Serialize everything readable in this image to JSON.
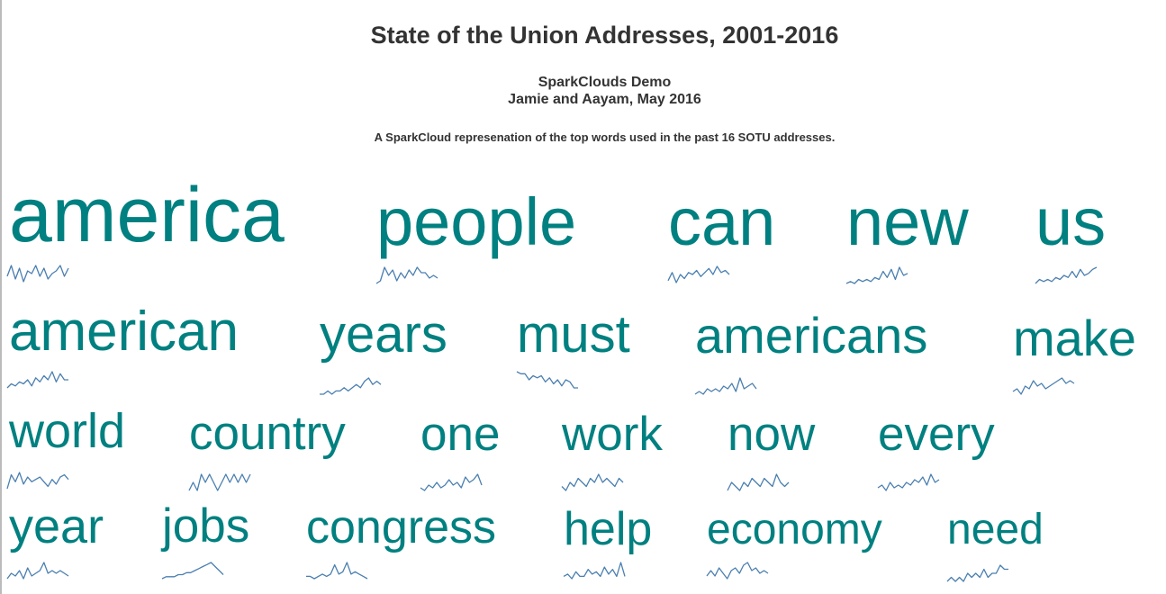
{
  "header": {
    "title": "State of the Union Addresses, 2001-2016",
    "subtitle_line1": "SparkClouds Demo",
    "subtitle_line2": "Jamie and Aayam, May 2016",
    "description": "A SparkCloud represenation of the top words used in the past 16 SOTU addresses."
  },
  "chart_data": {
    "type": "sparkcloud",
    "colors": {
      "word": "#008080",
      "sparkline": "#4a7fb0"
    },
    "words": [
      {
        "text": "america",
        "trend": [
          5,
          9,
          4,
          8,
          3,
          7,
          6,
          9,
          5,
          8,
          4,
          6,
          7,
          9,
          5,
          8
        ]
      },
      {
        "text": "people",
        "trend": [
          2,
          3,
          8,
          5,
          7,
          3,
          6,
          4,
          7,
          5,
          8,
          6,
          6,
          4,
          5,
          4
        ]
      },
      {
        "text": "can",
        "trend": [
          2,
          6,
          1,
          5,
          3,
          6,
          5,
          7,
          4,
          6,
          8,
          5,
          9,
          6,
          7,
          5
        ]
      },
      {
        "text": "new",
        "trend": [
          1,
          2,
          1,
          3,
          2,
          3,
          2,
          4,
          3,
          7,
          4,
          8,
          3,
          9,
          5,
          6
        ]
      },
      {
        "text": "us",
        "trend": [
          1,
          3,
          2,
          3,
          2,
          4,
          3,
          5,
          4,
          7,
          4,
          8,
          5,
          6,
          8,
          9
        ]
      },
      {
        "text": "american",
        "trend": [
          1,
          3,
          2,
          4,
          3,
          5,
          2,
          6,
          4,
          7,
          5,
          9,
          4,
          8,
          5,
          5
        ]
      },
      {
        "text": "years",
        "trend": [
          2,
          2,
          3,
          2,
          3,
          3,
          4,
          3,
          4,
          5,
          4,
          6,
          7,
          5,
          6,
          5
        ]
      },
      {
        "text": "must",
        "trend": [
          9,
          8,
          8,
          5,
          7,
          6,
          7,
          4,
          6,
          3,
          5,
          2,
          5,
          4,
          1,
          1
        ]
      },
      {
        "text": "americans",
        "trend": [
          2,
          3,
          2,
          4,
          3,
          4,
          3,
          5,
          4,
          6,
          3,
          8,
          4,
          5,
          6,
          4
        ]
      },
      {
        "text": "make",
        "trend": [
          2,
          3,
          1,
          4,
          3,
          6,
          4,
          5,
          3,
          4,
          5,
          6,
          7,
          5,
          6,
          5
        ]
      },
      {
        "text": "world",
        "trend": [
          2,
          8,
          5,
          9,
          4,
          7,
          5,
          6,
          7,
          5,
          3,
          6,
          4,
          7,
          8,
          6
        ]
      },
      {
        "text": "country",
        "trend": [
          3,
          4,
          3,
          5,
          4,
          5,
          4,
          3,
          4,
          5,
          4,
          5,
          4,
          5,
          4,
          5
        ]
      },
      {
        "text": "one",
        "trend": [
          3,
          2,
          4,
          3,
          5,
          3,
          4,
          6,
          4,
          5,
          3,
          7,
          5,
          6,
          8,
          4
        ]
      },
      {
        "text": "work",
        "trend": [
          3,
          2,
          4,
          3,
          5,
          4,
          3,
          5,
          4,
          6,
          4,
          5,
          4,
          3,
          5,
          4
        ]
      },
      {
        "text": "now",
        "trend": [
          2,
          4,
          3,
          2,
          4,
          3,
          5,
          4,
          3,
          5,
          4,
          3,
          6,
          4,
          3,
          4
        ]
      },
      {
        "text": "every",
        "trend": [
          3,
          4,
          2,
          5,
          3,
          4,
          3,
          5,
          4,
          6,
          5,
          7,
          4,
          8,
          5,
          6
        ]
      },
      {
        "text": "year",
        "trend": [
          3,
          5,
          4,
          6,
          3,
          7,
          4,
          5,
          6,
          9,
          5,
          6,
          5,
          6,
          5,
          4
        ]
      },
      {
        "text": "jobs",
        "trend": [
          1,
          2,
          2,
          2,
          3,
          3,
          4,
          4,
          5,
          6,
          7,
          8,
          9,
          7,
          5,
          3
        ]
      },
      {
        "text": "congress",
        "trend": [
          3,
          3,
          2,
          3,
          4,
          3,
          4,
          8,
          4,
          5,
          9,
          4,
          5,
          4,
          3,
          2
        ]
      },
      {
        "text": "help",
        "trend": [
          3,
          4,
          2,
          5,
          3,
          3,
          6,
          4,
          5,
          3,
          7,
          4,
          6,
          3,
          9,
          3
        ]
      },
      {
        "text": "economy",
        "trend": [
          3,
          5,
          3,
          6,
          4,
          2,
          5,
          6,
          4,
          7,
          8,
          5,
          6,
          4,
          5,
          4
        ]
      },
      {
        "text": "need",
        "trend": [
          2,
          3,
          2,
          3,
          2,
          4,
          3,
          4,
          3,
          5,
          3,
          4,
          4,
          6,
          5,
          5
        ]
      }
    ]
  }
}
